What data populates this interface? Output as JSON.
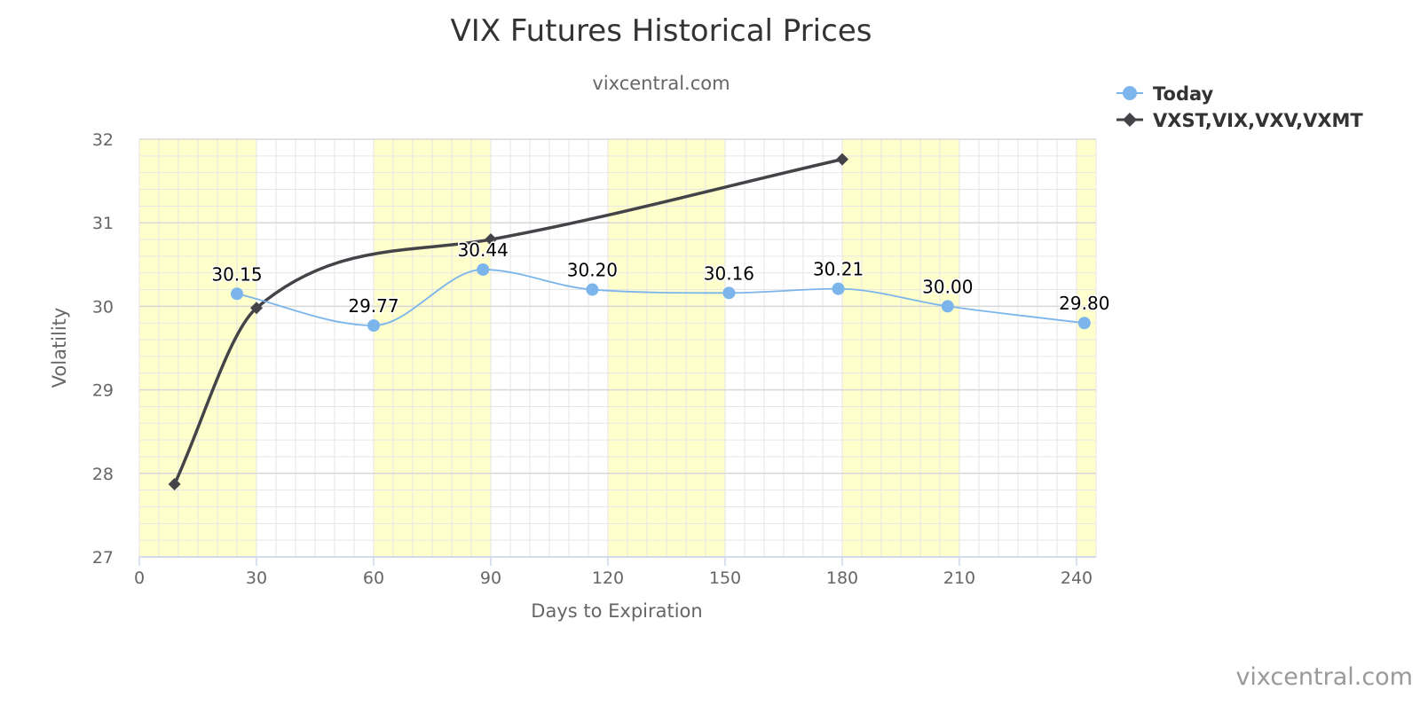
{
  "chart_data": {
    "type": "line",
    "title": "VIX Futures Historical Prices",
    "subtitle": "vixcentral.com",
    "xlabel": "Days to Expiration",
    "ylabel": "Volatility",
    "xlim": [
      0,
      245
    ],
    "ylim": [
      27,
      32
    ],
    "xticks": [
      "0",
      "30",
      "60",
      "90",
      "120",
      "150",
      "180",
      "210",
      "240"
    ],
    "yticks": [
      "27",
      "28",
      "29",
      "30",
      "31",
      "32"
    ],
    "grid": true,
    "legend_position": "top-right",
    "band_color": "#ffffcc",
    "series": [
      {
        "name": "Today",
        "color": "#7cb5ec",
        "marker": "circle",
        "smooth": true,
        "x": [
          25,
          60,
          88,
          116,
          151,
          179,
          207,
          242
        ],
        "values": [
          30.15,
          29.77,
          30.44,
          30.2,
          30.16,
          30.21,
          30.0,
          29.8
        ],
        "labels": [
          "30.15",
          "29.77",
          "30.44",
          "30.20",
          "30.16",
          "30.21",
          "30.00",
          "29.80"
        ]
      },
      {
        "name": "VXST,VIX,VXV,VXMT",
        "color": "#434348",
        "marker": "diamond",
        "smooth": true,
        "x": [
          9,
          30,
          90,
          180
        ],
        "values": [
          27.87,
          29.98,
          30.8,
          31.76
        ]
      }
    ]
  },
  "credit": "vixcentral.com"
}
